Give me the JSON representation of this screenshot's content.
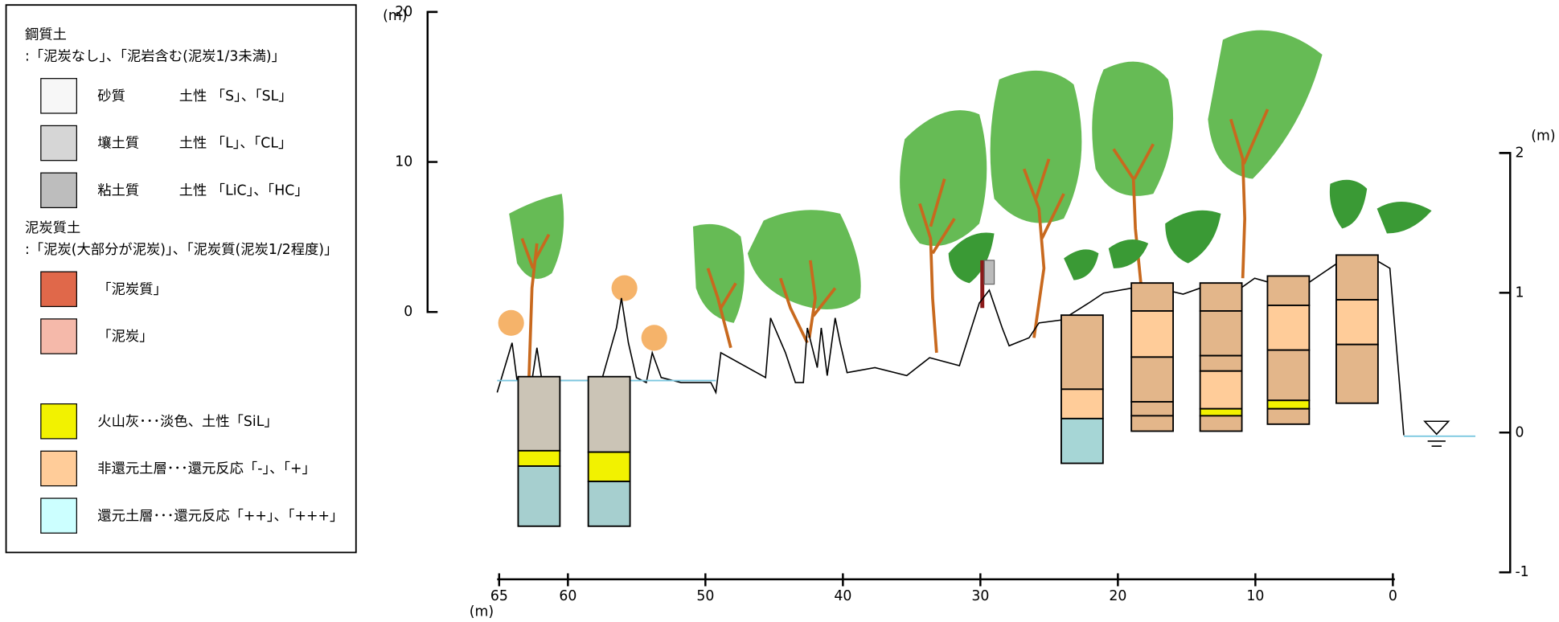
{
  "legend": {
    "groups": [
      {
        "title": "鋼質土",
        "subtitle": ":「泥炭なし」、「泥岩含む(泥炭1/3未満)」",
        "items": [
          {
            "label": "砂質",
            "desc": "土性 「S」、「SL」",
            "color": "#f7f7f7"
          },
          {
            "label": "壤土質",
            "desc": "土性 「L」、「CL」",
            "color": "#d6d6d6"
          },
          {
            "label": "粘土質",
            "desc": "土性 「LiC」、「HC」",
            "color": "#bdbdbd"
          }
        ]
      },
      {
        "title": "泥炭質土",
        "subtitle": ":「泥炭(大部分が泥炭)」、「泥炭質(泥炭1/2程度)」",
        "items": [
          {
            "label": "「泥炭質」",
            "color": "#e0684a"
          },
          {
            "label": "「泥炭」",
            "color": "#f5b9aa"
          }
        ]
      },
      {
        "items": [
          {
            "label": "火山灰･･･淡色、土性「SiL」",
            "color": "#f2f200"
          },
          {
            "label": "非還元土層･･･還元反応「-」、「+」",
            "color": "#ffcc99"
          },
          {
            "label": "還元土層･･･還元反応「++」、「+++」",
            "color": "#ccffff"
          }
        ]
      }
    ]
  },
  "height_axis": {
    "unit": "(m)",
    "lim": [
      0,
      20
    ],
    "ticks": [
      0,
      10,
      20
    ]
  },
  "depth_axis": {
    "unit": "(m)",
    "lim": [
      -1,
      2
    ],
    "ticks": [
      -1,
      0,
      1,
      2
    ]
  },
  "distance_axis": {
    "unit": "(m)",
    "lim": [
      65,
      0
    ],
    "ticks": [
      65,
      60,
      50,
      40,
      30,
      20,
      10,
      0
    ]
  },
  "columns": [
    {
      "distance": 62.1,
      "top": 0.4,
      "layers": [
        {
          "bottom": -0.13,
          "color": "#cbc4b6"
        },
        {
          "bottom": -0.24,
          "color": "#f2f200"
        },
        {
          "bottom": -0.67,
          "color": "#a6cfcf"
        }
      ]
    },
    {
      "distance": 57.0,
      "top": 0.4,
      "layers": [
        {
          "bottom": -0.14,
          "color": "#cbc4b6"
        },
        {
          "bottom": -0.35,
          "color": "#f2f200"
        },
        {
          "bottom": -0.67,
          "color": "#a6cfcf"
        }
      ]
    },
    {
      "distance": 22.6,
      "top": 0.84,
      "layers": [
        {
          "bottom": 0.31,
          "color": "#e3b68a"
        },
        {
          "bottom": 0.1,
          "color": "#ffcc99"
        },
        {
          "bottom": -0.22,
          "color": "#a6d6d6"
        }
      ]
    },
    {
      "distance": 17.5,
      "top": 1.07,
      "layers": [
        {
          "bottom": 0.87,
          "color": "#e3b68a"
        },
        {
          "bottom": 0.54,
          "color": "#ffcc99"
        },
        {
          "bottom": 0.22,
          "color": "#e3b68a"
        },
        {
          "bottom": 0.12,
          "color": "#e3b68a"
        },
        {
          "bottom": 0.01,
          "color": "#e3b68a"
        }
      ]
    },
    {
      "distance": 12.5,
      "top": 1.07,
      "layers": [
        {
          "bottom": 0.87,
          "color": "#e3b68a"
        },
        {
          "bottom": 0.55,
          "color": "#e3b68a"
        },
        {
          "bottom": 0.44,
          "color": "#e3b68a"
        },
        {
          "bottom": 0.17,
          "color": "#ffcc99"
        },
        {
          "bottom": 0.12,
          "color": "#f2f200"
        },
        {
          "bottom": 0.01,
          "color": "#e3b68a"
        }
      ]
    },
    {
      "distance": 7.6,
      "top": 1.12,
      "layers": [
        {
          "bottom": 0.91,
          "color": "#e3b68a"
        },
        {
          "bottom": 0.59,
          "color": "#ffcc99"
        },
        {
          "bottom": 0.23,
          "color": "#e3b68a"
        },
        {
          "bottom": 0.17,
          "color": "#f2f200"
        },
        {
          "bottom": 0.06,
          "color": "#e3b68a"
        }
      ]
    },
    {
      "distance": 2.6,
      "top": 1.27,
      "layers": [
        {
          "bottom": 0.95,
          "color": "#e3b68a"
        },
        {
          "bottom": 0.63,
          "color": "#ffcc99"
        },
        {
          "bottom": 0.21,
          "color": "#e3b68a"
        }
      ]
    }
  ]
}
